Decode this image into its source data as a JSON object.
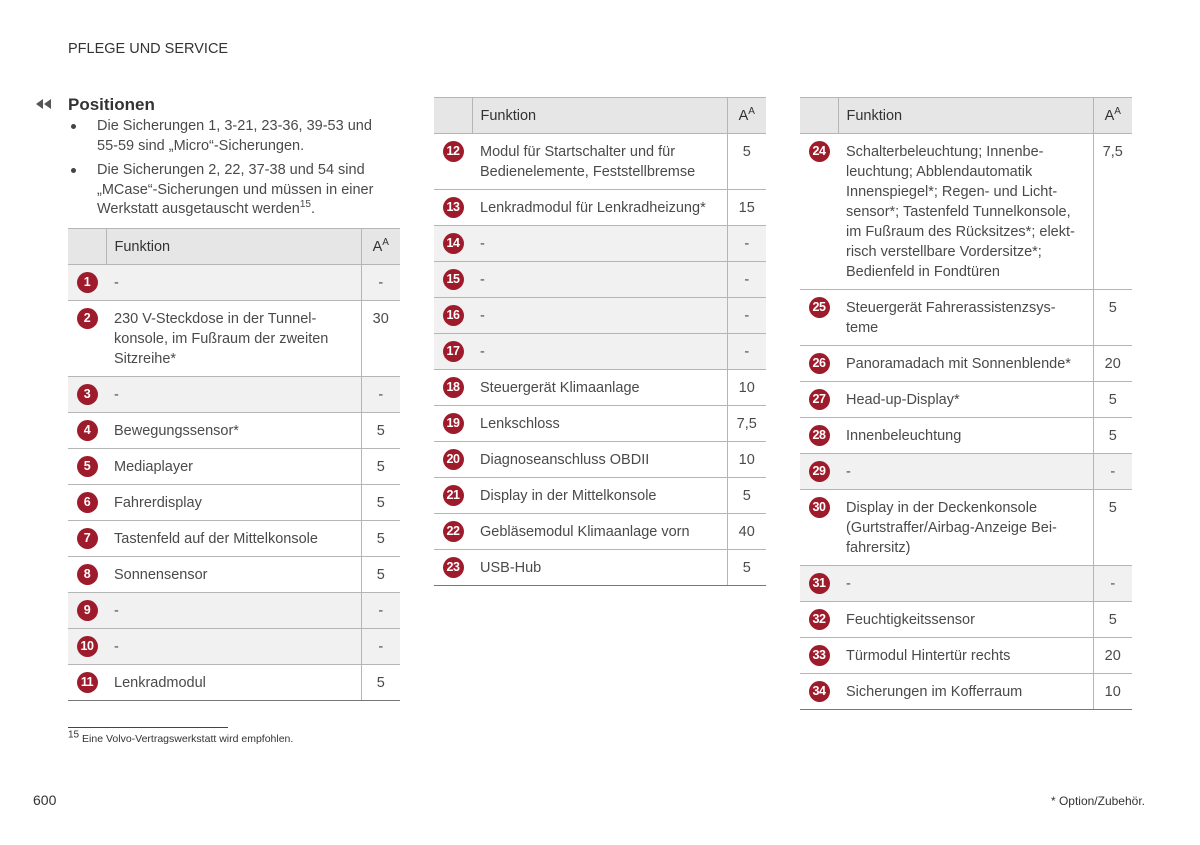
{
  "header": {
    "title": "PFLEGE UND SERVICE"
  },
  "section": {
    "title": "Positionen",
    "bullets": [
      {
        "text": "Die Sicherungen 1, 3-21, 23-36, 39-53 und\n55-59 sind „Micro“-Sicherungen."
      },
      {
        "text": "Die Sicherungen 2, 22, 37-38 und 54 sind\n„MCase“-Sicherungen und müssen in einer\nWerkstatt ausgetauscht werden",
        "footnote_ref": "15",
        "tail": "."
      }
    ]
  },
  "tables": [
    {
      "header": {
        "function": "Funktion",
        "amp": "A",
        "amp_sup": "A"
      },
      "rows": [
        {
          "number": 1,
          "function": "-",
          "value": "-"
        },
        {
          "number": 2,
          "function": "230 V-Steckdose in der Tunnel-\nkonsole, im Fußraum der zweiten\nSitzreihe*",
          "value": 30
        },
        {
          "number": 3,
          "function": "-",
          "value": "-"
        },
        {
          "number": 4,
          "function": "Bewegungssensor*",
          "value": 5
        },
        {
          "number": 5,
          "function": "Mediaplayer",
          "value": 5
        },
        {
          "number": 6,
          "function": "Fahrerdisplay",
          "value": 5
        },
        {
          "number": 7,
          "function": "Tastenfeld auf der Mittelkonsole",
          "value": 5
        },
        {
          "number": 8,
          "function": "Sonnensensor",
          "value": 5
        },
        {
          "number": 9,
          "function": "-",
          "value": "-"
        },
        {
          "number": 10,
          "function": "-",
          "value": "-"
        },
        {
          "number": 11,
          "function": "Lenkradmodul",
          "value": 5
        }
      ]
    },
    {
      "header": {
        "function": "Funktion",
        "amp": "A",
        "amp_sup": "A"
      },
      "rows": [
        {
          "number": 12,
          "function": "Modul für Startschalter und für\nBedienelemente, Feststellbremse",
          "value": 5
        },
        {
          "number": 13,
          "function": "Lenkradmodul für Lenkradheizung*",
          "value": 15
        },
        {
          "number": 14,
          "function": "-",
          "value": "-"
        },
        {
          "number": 15,
          "function": "-",
          "value": "-"
        },
        {
          "number": 16,
          "function": "-",
          "value": "-"
        },
        {
          "number": 17,
          "function": "-",
          "value": "-"
        },
        {
          "number": 18,
          "function": "Steuergerät Klimaanlage",
          "value": 10
        },
        {
          "number": 19,
          "function": "Lenkschloss",
          "value": "7,5"
        },
        {
          "number": 20,
          "function": "Diagnoseanschluss OBDII",
          "value": 10
        },
        {
          "number": 21,
          "function": "Display in der Mittelkonsole",
          "value": 5
        },
        {
          "number": 22,
          "function": "Gebläsemodul Klimaanlage vorn",
          "value": 40
        },
        {
          "number": 23,
          "function": "USB-Hub",
          "value": 5
        }
      ]
    },
    {
      "header": {
        "function": "Funktion",
        "amp": "A",
        "amp_sup": "A"
      },
      "rows": [
        {
          "number": 24,
          "function": "Schalterbeleuchtung; Innenbe-\nleuchtung; Abblendautomatik\nInnenspiegel*; Regen- und Licht-\nsensor*; Tastenfeld Tunnelkonsole,\nim Fußraum des Rücksitzes*; elekt-\nrisch verstellbare Vordersitze*;\nBedienfeld in Fondtüren",
          "value": "7,5"
        },
        {
          "number": 25,
          "function": "Steuergerät Fahrerassistenzsys-\nteme",
          "value": 5
        },
        {
          "number": 26,
          "function": "Panoramadach mit Sonnenblende*",
          "value": 20
        },
        {
          "number": 27,
          "function": "Head-up-Display*",
          "value": 5
        },
        {
          "number": 28,
          "function": "Innenbeleuchtung",
          "value": 5
        },
        {
          "number": 29,
          "function": "-",
          "value": "-"
        },
        {
          "number": 30,
          "function": "Display in der Deckenkonsole\n(Gurtstraffer/Airbag-Anzeige Bei-\nfahrersitz)",
          "value": 5
        },
        {
          "number": 31,
          "function": "-",
          "value": "-"
        },
        {
          "number": 32,
          "function": "Feuchtigkeitssensor",
          "value": 5
        },
        {
          "number": 33,
          "function": "Türmodul Hintertür rechts",
          "value": 20
        },
        {
          "number": 34,
          "function": "Sicherungen im Kofferraum",
          "value": 10
        }
      ]
    }
  ],
  "footnote": {
    "number": "15",
    "text": "Eine Volvo-Vertragswerkstatt wird empfohlen."
  },
  "footer": {
    "page": "600",
    "note": "* Option/Zubehör."
  }
}
